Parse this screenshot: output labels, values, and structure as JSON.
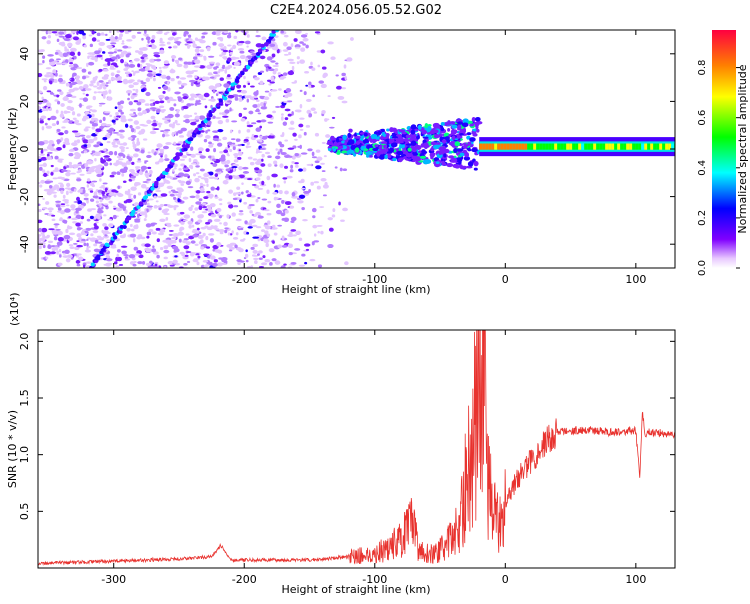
{
  "title": "C2E4.2024.056.05.52.G02",
  "colors": {
    "snr_line": "#e8322e",
    "scatter_low": "#dcb4ff",
    "scatter_mid": "#7a1dff",
    "scatter_high": "#2200ff",
    "background": "#ffffff"
  },
  "chart_data": [
    {
      "type": "heatmap",
      "title": "",
      "xlabel": "Height of straight line (km)",
      "ylabel": "Frequency (Hz)",
      "xlim": [
        -358,
        130
      ],
      "ylim": [
        -50,
        50
      ],
      "xticks": [
        -300,
        -200,
        -100,
        0,
        100
      ],
      "yticks": [
        -40,
        -20,
        0,
        20,
        40
      ],
      "grid": false,
      "colorbar": {
        "label": "Normalized spectral amplitude",
        "range": [
          0,
          0.95
        ],
        "ticks": [
          "0.0",
          "0.2",
          "0.4",
          "0.6",
          "0.8"
        ],
        "colormap": [
          "#ffffff",
          "#8000ff",
          "#0000ff",
          "#00ffff",
          "#00ff00",
          "#ffff00",
          "#ff8000",
          "#ff0040"
        ]
      },
      "features": {
        "diagonal_trace": {
          "x": [
            -318,
            -175
          ],
          "y": [
            -50,
            50
          ],
          "amplitude": 0.3
        },
        "noise_region_x": [
          -358,
          -115
        ],
        "scatter_cluster_x": [
          -135,
          -20
        ],
        "steady_band": {
          "x": [
            -20,
            130
          ],
          "y_center": 1,
          "half_width": 4,
          "peak_amplitude": 0.9
        }
      }
    },
    {
      "type": "line",
      "title": "",
      "xlabel": "Height of straight line (km)",
      "ylabel": "SNR (10 * v/v)",
      "y_multiplier": "(x10⁴)",
      "xlim": [
        -358,
        130
      ],
      "ylim": [
        0,
        21000
      ],
      "xticks": [
        -300,
        -200,
        -100,
        0,
        100
      ],
      "yticks": [
        0.5,
        1.0,
        1.5,
        2.0
      ],
      "grid": false,
      "series": [
        {
          "x": [
            -358,
            -300,
            -250,
            -225,
            -218,
            -210,
            -150,
            -120,
            -100,
            -90,
            -80,
            -72,
            -65,
            -55,
            -45,
            -35,
            -28,
            -22,
            -18,
            -16,
            -14,
            -10,
            -6,
            0,
            10,
            20,
            30,
            40,
            60,
            80,
            100,
            103,
            105,
            107,
            110,
            130
          ],
          "y": [
            400,
            600,
            800,
            1000,
            2000,
            700,
            700,
            1000,
            1200,
            1800,
            2500,
            3800,
            1500,
            1200,
            2000,
            3800,
            9000,
            14000,
            21000,
            17000,
            9000,
            5000,
            4000,
            6000,
            8000,
            9500,
            11000,
            12000,
            12200,
            12000,
            12100,
            8000,
            14000,
            11500,
            12000,
            11800
          ]
        }
      ]
    }
  ]
}
